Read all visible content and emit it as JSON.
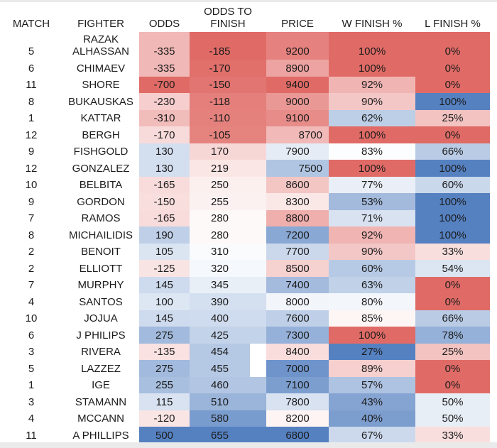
{
  "header": {
    "match": "MATCH",
    "fighter": "FIGHTER",
    "odds": "ODDS",
    "odds_to_finish_line1": "ODDS TO",
    "odds_to_finish_line2": "FINISH",
    "price": "PRICE",
    "w_finish": "W FINISH %",
    "l_finish": "L FINISH %"
  },
  "palette": {
    "scale_red": "#E06B66",
    "scale_white": "#FFFFFF",
    "scale_blue": "#5581C1",
    "edge_band_gray": "#EAEAEA",
    "text": "#1C1C1C"
  },
  "chart_data": {
    "type": "table",
    "columns": [
      "MATCH",
      "FIGHTER",
      "ODDS",
      "ODDS TO FINISH",
      "PRICE",
      "W FINISH %",
      "L FINISH %"
    ],
    "rows": [
      {
        "match": "5",
        "fighter": "RAZAK ALHASSAN",
        "odds": "-335",
        "odds_to_finish": "-185",
        "price": "9200",
        "w_finish": "100%",
        "l_finish": "0%",
        "two_line_fighter": true,
        "gap_filled": true,
        "fill": {
          "odds": "#F0B8B6",
          "odds_to_finish": "#E06B66",
          "price": "#E5817E",
          "w_finish": "#E06B66",
          "l_finish": "#E06B66"
        }
      },
      {
        "match": "6",
        "fighter": "CHIMAEV",
        "odds": "-335",
        "odds_to_finish": "-170",
        "price": "8900",
        "w_finish": "100%",
        "l_finish": "0%",
        "gap_filled": true,
        "fill": {
          "odds": "#F0B8B6",
          "odds_to_finish": "#E16F6A",
          "price": "#ECA3A1",
          "w_finish": "#E06B66",
          "l_finish": "#E06B66"
        }
      },
      {
        "match": "11",
        "fighter": "SHORE",
        "odds": "-700",
        "odds_to_finish": "-150",
        "price": "9400",
        "w_finish": "92%",
        "l_finish": "0%",
        "gap_filled": true,
        "fill": {
          "odds": "#E06B66",
          "odds_to_finish": "#E27571",
          "price": "#E06B66",
          "w_finish": "#F0B5B3",
          "l_finish": "#E06B66"
        }
      },
      {
        "match": "8",
        "fighter": "BUKAUSKAS",
        "odds": "-230",
        "odds_to_finish": "-118",
        "price": "9000",
        "w_finish": "90%",
        "l_finish": "100%",
        "gap_filled": true,
        "fill": {
          "odds": "#F5CECD",
          "odds_to_finish": "#E47F7B",
          "price": "#EA9895",
          "w_finish": "#F3C7C6",
          "l_finish": "#5581C1"
        }
      },
      {
        "match": "1",
        "fighter": "KATTAR",
        "odds": "-310",
        "odds_to_finish": "-110",
        "price": "9100",
        "w_finish": "62%",
        "l_finish": "25%",
        "gap_filled": true,
        "fill": {
          "odds": "#F1BDBB",
          "odds_to_finish": "#E5817D",
          "price": "#E78C89",
          "w_finish": "#BDCEE7",
          "l_finish": "#F2C3C1"
        }
      },
      {
        "match": "12",
        "fighter": "BERGH",
        "odds": "-170",
        "odds_to_finish": "-105",
        "price": "8700",
        "w_finish": "100%",
        "l_finish": "0%",
        "price_align": "right",
        "gap_filled": true,
        "fill": {
          "odds": "#F7DBDA",
          "odds_to_finish": "#E5837F",
          "price": "#F1BAB8",
          "w_finish": "#E06B66",
          "l_finish": "#E06B66"
        }
      },
      {
        "match": "9",
        "fighter": "FISHGOLD",
        "odds": "130",
        "odds_to_finish": "170",
        "price": "7900",
        "w_finish": "83%",
        "l_finish": "66%",
        "gap_filled": true,
        "fill": {
          "odds": "#D3DEEF",
          "odds_to_finish": "#F7D7D6",
          "price": "#E5ECF5",
          "w_finish": "#FCFDFE",
          "l_finish": "#B9CBE5"
        }
      },
      {
        "match": "12",
        "fighter": "GONZALEZ",
        "odds": "130",
        "odds_to_finish": "219",
        "price": "7500",
        "w_finish": "100%",
        "l_finish": "100%",
        "price_align": "right",
        "gap_filled": true,
        "fill": {
          "odds": "#D3DEEF",
          "odds_to_finish": "#FAE6E5",
          "price": "#B0C5E2",
          "w_finish": "#E06B66",
          "l_finish": "#5581C1"
        }
      },
      {
        "match": "10",
        "fighter": "BELBITA",
        "odds": "-165",
        "odds_to_finish": "250",
        "price": "8600",
        "w_finish": "77%",
        "l_finish": "60%",
        "gap_filled": true,
        "fill": {
          "odds": "#F8DCDB",
          "odds_to_finish": "#FCF0EF",
          "price": "#F3C6C4",
          "w_finish": "#EAEFF7",
          "l_finish": "#CAD8EC"
        }
      },
      {
        "match": "9",
        "fighter": "GORDON",
        "odds": "-150",
        "odds_to_finish": "255",
        "price": "8300",
        "w_finish": "53%",
        "l_finish": "100%",
        "gap_filled": true,
        "fill": {
          "odds": "#F8DFDE",
          "odds_to_finish": "#FCF1F1",
          "price": "#FAE8E7",
          "w_finish": "#A3BADD",
          "l_finish": "#5581C1"
        }
      },
      {
        "match": "7",
        "fighter": "RAMOS",
        "odds": "-165",
        "odds_to_finish": "280",
        "price": "8800",
        "w_finish": "71%",
        "l_finish": "100%",
        "gap_filled": true,
        "fill": {
          "odds": "#F8DCDB",
          "odds_to_finish": "#FEF9F9",
          "price": "#EEAFAD",
          "w_finish": "#D8E2F1",
          "l_finish": "#5581C1"
        }
      },
      {
        "match": "8",
        "fighter": "MICHAILIDIS",
        "odds": "190",
        "odds_to_finish": "280",
        "price": "7200",
        "w_finish": "92%",
        "l_finish": "100%",
        "gap_filled": true,
        "fill": {
          "odds": "#BECFE7",
          "odds_to_finish": "#FEF9F9",
          "price": "#89A8D4",
          "w_finish": "#F0B5B3",
          "l_finish": "#5581C1"
        }
      },
      {
        "match": "2",
        "fighter": "BENOIT",
        "odds": "105",
        "odds_to_finish": "310",
        "price": "7700",
        "w_finish": "90%",
        "l_finish": "33%",
        "gap_filled": true,
        "fill": {
          "odds": "#DBE5F2",
          "odds_to_finish": "#FAFBFD",
          "price": "#CBD8EC",
          "w_finish": "#F3C7C6",
          "l_finish": "#F8DFDE"
        }
      },
      {
        "match": "2",
        "fighter": "ELLIOTT",
        "odds": "-125",
        "odds_to_finish": "320",
        "price": "8500",
        "w_finish": "60%",
        "l_finish": "54%",
        "gap_filled": true,
        "fill": {
          "odds": "#F9E4E4",
          "odds_to_finish": "#F5F8FC",
          "price": "#F5D1D0",
          "w_finish": "#B7CAE5",
          "l_finish": "#DCE5F2"
        }
      },
      {
        "match": "7",
        "fighter": "MURPHY",
        "odds": "145",
        "odds_to_finish": "345",
        "price": "7400",
        "w_finish": "63%",
        "l_finish": "0%",
        "gap_filled": true,
        "fill": {
          "odds": "#CEDAED",
          "odds_to_finish": "#E9EFF7",
          "price": "#A4BBDE",
          "w_finish": "#C0D1E8",
          "l_finish": "#E06B66"
        }
      },
      {
        "match": "4",
        "fighter": "SANTOS",
        "odds": "100",
        "odds_to_finish": "390",
        "price": "8000",
        "w_finish": "80%",
        "l_finish": "0%",
        "gap_filled": true,
        "fill": {
          "odds": "#DDE6F3",
          "odds_to_finish": "#D4DFEF",
          "price": "#F2F5FA",
          "w_finish": "#F3F6FB",
          "l_finish": "#E06B66"
        }
      },
      {
        "match": "10",
        "fighter": "JOJUA",
        "odds": "145",
        "odds_to_finish": "400",
        "price": "7600",
        "w_finish": "85%",
        "l_finish": "66%",
        "gap_filled": true,
        "fill": {
          "odds": "#CEDAED",
          "odds_to_finish": "#CFDBEE",
          "price": "#BECFE7",
          "w_finish": "#FDF6F5",
          "l_finish": "#B9CBE5"
        }
      },
      {
        "match": "6",
        "fighter": "J PHILIPS",
        "odds": "275",
        "odds_to_finish": "425",
        "price": "7300",
        "w_finish": "100%",
        "l_finish": "78%",
        "gap_filled": true,
        "fill": {
          "odds": "#A2BADD",
          "odds_to_finish": "#C3D3E9",
          "price": "#96B1D9",
          "w_finish": "#E06B66",
          "l_finish": "#95B1D9"
        }
      },
      {
        "match": "3",
        "fighter": "RIVERA",
        "odds": "-135",
        "odds_to_finish": "454",
        "price": "8400",
        "w_finish": "27%",
        "l_finish": "25%",
        "gap_filled": false,
        "fill": {
          "odds": "#F9E2E1",
          "odds_to_finish": "#B5C8E4",
          "price": "#F8DDDC",
          "w_finish": "#5581C1",
          "l_finish": "#F2C3C1"
        }
      },
      {
        "match": "5",
        "fighter": "LAZZEZ",
        "odds": "275",
        "odds_to_finish": "455",
        "price": "7000",
        "w_finish": "89%",
        "l_finish": "0%",
        "gap_filled": false,
        "fill": {
          "odds": "#A2BADD",
          "odds_to_finish": "#B5C8E4",
          "price": "#6F94CB",
          "w_finish": "#F5D0CF",
          "l_finish": "#E06B66"
        }
      },
      {
        "match": "1",
        "fighter": "IGE",
        "odds": "255",
        "odds_to_finish": "460",
        "price": "7100",
        "w_finish": "57%",
        "l_finish": "0%",
        "gap_filled": true,
        "fill": {
          "odds": "#A8BFDF",
          "odds_to_finish": "#B2C6E3",
          "price": "#7C9ECF",
          "w_finish": "#AEC3E2",
          "l_finish": "#E06B66"
        }
      },
      {
        "match": "3",
        "fighter": "STAMANN",
        "odds": "115",
        "odds_to_finish": "510",
        "price": "7800",
        "w_finish": "43%",
        "l_finish": "50%",
        "gap_filled": true,
        "fill": {
          "odds": "#D8E2F1",
          "odds_to_finish": "#9AB4DA",
          "price": "#D8E2F1",
          "w_finish": "#85A4D2",
          "l_finish": "#E8EEF6"
        }
      },
      {
        "match": "4",
        "fighter": "MCCANN",
        "odds": "-120",
        "odds_to_finish": "580",
        "price": "8200",
        "w_finish": "40%",
        "l_finish": "50%",
        "gap_filled": true,
        "fill": {
          "odds": "#FAE5E5",
          "odds_to_finish": "#799CCE",
          "price": "#FDF4F3",
          "w_finish": "#7C9ECF",
          "l_finish": "#E8EEF6"
        }
      },
      {
        "match": "11",
        "fighter": "A PHILLIPS",
        "odds": "500",
        "odds_to_finish": "655",
        "price": "6800",
        "w_finish": "67%",
        "l_finish": "33%",
        "gap_filled": true,
        "fill": {
          "odds": "#5581C1",
          "odds_to_finish": "#5581C1",
          "price": "#5581C1",
          "w_finish": "#CCD9ED",
          "l_finish": "#F8DFDE"
        }
      }
    ]
  }
}
